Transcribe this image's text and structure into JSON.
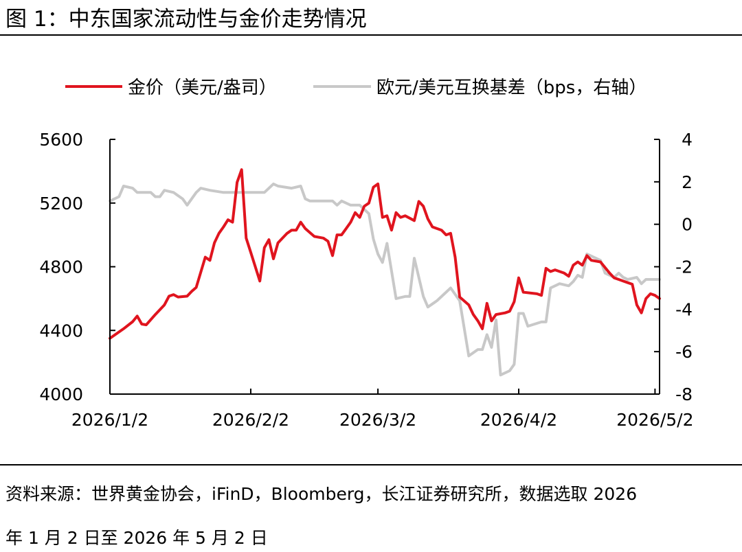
{
  "header": {
    "title": "图 1：中东国家流动性与金价走势情况"
  },
  "footer": {
    "source": "资料来源：世界黄金协会，iFinD，Bloomberg，长江证券研究所，数据选取 2026",
    "date_range": "年 1 月 2 日至 2026 年 5 月 2 日"
  },
  "chart_data": {
    "type": "line",
    "legend_position": "top",
    "grid": false,
    "x_ticks": [
      "2026/1/2",
      "2026/2/2",
      "2026/3/2",
      "2026/4/2",
      "2026/5/2"
    ],
    "x_range": [
      "2026/1/2",
      "2026/5/3"
    ],
    "y_left": {
      "range": [
        4000,
        5600
      ],
      "ticks": [
        "4000",
        "4400",
        "4800",
        "5200",
        "5600"
      ]
    },
    "y_right": {
      "range": [
        -8,
        4
      ],
      "ticks": [
        "-8",
        "-6",
        "-4",
        "-2",
        "0",
        "2",
        "4"
      ]
    },
    "series": [
      {
        "name": "金价（美元/盎司）",
        "axis": "left",
        "color": "#e0141e",
        "points": [
          [
            "2026/1/2",
            4350
          ],
          [
            "2026/1/5",
            4410
          ],
          [
            "2026/1/7",
            4455
          ],
          [
            "2026/1/8",
            4490
          ],
          [
            "2026/1/9",
            4440
          ],
          [
            "2026/1/10",
            4435
          ],
          [
            "2026/1/12",
            4500
          ],
          [
            "2026/1/14",
            4560
          ],
          [
            "2026/1/15",
            4615
          ],
          [
            "2026/1/16",
            4625
          ],
          [
            "2026/1/17",
            4610
          ],
          [
            "2026/1/19",
            4615
          ],
          [
            "2026/1/20",
            4645
          ],
          [
            "2026/1/21",
            4670
          ],
          [
            "2026/1/23",
            4860
          ],
          [
            "2026/1/24",
            4840
          ],
          [
            "2026/1/25",
            4950
          ],
          [
            "2026/1/26",
            5010
          ],
          [
            "2026/1/27",
            5050
          ],
          [
            "2026/1/28",
            5095
          ],
          [
            "2026/1/29",
            5080
          ],
          [
            "2026/1/30",
            5330
          ],
          [
            "2026/1/31",
            5410
          ],
          [
            "2026/2/1",
            4980
          ],
          [
            "2026/2/2",
            4890
          ],
          [
            "2026/2/4",
            4710
          ],
          [
            "2026/2/5",
            4920
          ],
          [
            "2026/2/6",
            4970
          ],
          [
            "2026/2/7",
            4850
          ],
          [
            "2026/2/8",
            4950
          ],
          [
            "2026/2/9",
            4980
          ],
          [
            "2026/2/10",
            5010
          ],
          [
            "2026/2/11",
            5030
          ],
          [
            "2026/2/12",
            5030
          ],
          [
            "2026/2/13",
            5080
          ],
          [
            "2026/2/14",
            5040
          ],
          [
            "2026/2/16",
            4990
          ],
          [
            "2026/2/18",
            4980
          ],
          [
            "2026/2/19",
            4960
          ],
          [
            "2026/2/20",
            4870
          ],
          [
            "2026/2/21",
            5000
          ],
          [
            "2026/2/22",
            5000
          ],
          [
            "2026/2/23",
            5040
          ],
          [
            "2026/2/24",
            5080
          ],
          [
            "2026/2/25",
            5140
          ],
          [
            "2026/2/26",
            5110
          ],
          [
            "2026/2/27",
            5180
          ],
          [
            "2026/2/28",
            5200
          ],
          [
            "2026/3/1",
            5300
          ],
          [
            "2026/3/2",
            5320
          ],
          [
            "2026/3/3",
            5110
          ],
          [
            "2026/3/4",
            5120
          ],
          [
            "2026/3/5",
            5030
          ],
          [
            "2026/3/6",
            5140
          ],
          [
            "2026/3/7",
            5110
          ],
          [
            "2026/3/8",
            5120
          ],
          [
            "2026/3/10",
            5090
          ],
          [
            "2026/3/11",
            5210
          ],
          [
            "2026/3/12",
            5180
          ],
          [
            "2026/3/13",
            5100
          ],
          [
            "2026/3/14",
            5050
          ],
          [
            "2026/3/16",
            5030
          ],
          [
            "2026/3/17",
            5000
          ],
          [
            "2026/3/18",
            5010
          ],
          [
            "2026/3/19",
            4860
          ],
          [
            "2026/3/20",
            4610
          ],
          [
            "2026/3/22",
            4560
          ],
          [
            "2026/3/23",
            4500
          ],
          [
            "2026/3/24",
            4460
          ],
          [
            "2026/3/25",
            4410
          ],
          [
            "2026/3/26",
            4570
          ],
          [
            "2026/3/27",
            4460
          ],
          [
            "2026/3/28",
            4500
          ],
          [
            "2026/3/30",
            4510
          ],
          [
            "2026/3/31",
            4520
          ],
          [
            "2026/4/1",
            4580
          ],
          [
            "2026/4/2",
            4730
          ],
          [
            "2026/4/3",
            4640
          ],
          [
            "2026/4/6",
            4630
          ],
          [
            "2026/4/7",
            4620
          ],
          [
            "2026/4/8",
            4790
          ],
          [
            "2026/4/9",
            4770
          ],
          [
            "2026/4/10",
            4780
          ],
          [
            "2026/4/12",
            4760
          ],
          [
            "2026/4/13",
            4740
          ],
          [
            "2026/4/14",
            4810
          ],
          [
            "2026/4/15",
            4830
          ],
          [
            "2026/4/16",
            4810
          ],
          [
            "2026/4/17",
            4870
          ],
          [
            "2026/4/18",
            4840
          ],
          [
            "2026/4/20",
            4830
          ],
          [
            "2026/4/22",
            4760
          ],
          [
            "2026/4/23",
            4730
          ],
          [
            "2026/4/24",
            4720
          ],
          [
            "2026/4/25",
            4710
          ],
          [
            "2026/4/26",
            4700
          ],
          [
            "2026/4/27",
            4690
          ],
          [
            "2026/4/28",
            4560
          ],
          [
            "2026/4/29",
            4510
          ],
          [
            "2026/4/30",
            4600
          ],
          [
            "2026/5/1",
            4630
          ],
          [
            "2026/5/2",
            4620
          ],
          [
            "2026/5/3",
            4600
          ]
        ]
      },
      {
        "name": "欧元/美元互换基差（bps，右轴）",
        "axis": "right",
        "color": "#c8c8c8",
        "points": [
          [
            "2026/1/2",
            1.1
          ],
          [
            "2026/1/4",
            1.3
          ],
          [
            "2026/1/5",
            1.8
          ],
          [
            "2026/1/7",
            1.7
          ],
          [
            "2026/1/8",
            1.5
          ],
          [
            "2026/1/11",
            1.5
          ],
          [
            "2026/1/12",
            1.3
          ],
          [
            "2026/1/13",
            1.3
          ],
          [
            "2026/1/14",
            1.6
          ],
          [
            "2026/1/16",
            1.5
          ],
          [
            "2026/1/18",
            1.2
          ],
          [
            "2026/1/19",
            0.9
          ],
          [
            "2026/1/21",
            1.5
          ],
          [
            "2026/1/22",
            1.7
          ],
          [
            "2026/1/24",
            1.6
          ],
          [
            "2026/1/27",
            1.5
          ],
          [
            "2026/2/1",
            1.5
          ],
          [
            "2026/2/3",
            1.5
          ],
          [
            "2026/2/5",
            1.5
          ],
          [
            "2026/2/7",
            1.9
          ],
          [
            "2026/2/8",
            1.8
          ],
          [
            "2026/2/11",
            1.7
          ],
          [
            "2026/2/13",
            1.8
          ],
          [
            "2026/2/14",
            1.2
          ],
          [
            "2026/2/15",
            1.1
          ],
          [
            "2026/2/20",
            1.1
          ],
          [
            "2026/2/21",
            0.9
          ],
          [
            "2026/2/22",
            1.1
          ],
          [
            "2026/2/24",
            0.9
          ],
          [
            "2026/2/26",
            0.9
          ],
          [
            "2026/2/28",
            0.5
          ],
          [
            "2026/3/1",
            -0.7
          ],
          [
            "2026/3/2",
            -1.4
          ],
          [
            "2026/3/3",
            -1.8
          ],
          [
            "2026/3/4",
            -0.9
          ],
          [
            "2026/3/6",
            -3.5
          ],
          [
            "2026/3/8",
            -3.4
          ],
          [
            "2026/3/9",
            -3.4
          ],
          [
            "2026/3/10",
            -1.6
          ],
          [
            "2026/3/12",
            -3.4
          ],
          [
            "2026/3/13",
            -3.9
          ],
          [
            "2026/3/15",
            -3.6
          ],
          [
            "2026/3/17",
            -3.2
          ],
          [
            "2026/3/18",
            -3.0
          ],
          [
            "2026/3/20",
            -3.6
          ],
          [
            "2026/3/22",
            -6.2
          ],
          [
            "2026/3/24",
            -5.9
          ],
          [
            "2026/3/25",
            -5.9
          ],
          [
            "2026/3/26",
            -5.2
          ],
          [
            "2026/3/27",
            -5.8
          ],
          [
            "2026/3/28",
            -4.5
          ],
          [
            "2026/3/29",
            -7.1
          ],
          [
            "2026/3/31",
            -6.9
          ],
          [
            "2026/4/1",
            -6.6
          ],
          [
            "2026/4/2",
            -4.2
          ],
          [
            "2026/4/3",
            -4.2
          ],
          [
            "2026/4/4",
            -4.8
          ],
          [
            "2026/4/7",
            -4.6
          ],
          [
            "2026/4/8",
            -4.6
          ],
          [
            "2026/4/9",
            -3.0
          ],
          [
            "2026/4/11",
            -2.8
          ],
          [
            "2026/4/13",
            -2.9
          ],
          [
            "2026/4/14",
            -2.7
          ],
          [
            "2026/4/15",
            -2.4
          ],
          [
            "2026/4/16",
            -2.5
          ],
          [
            "2026/4/17",
            -1.4
          ],
          [
            "2026/4/20",
            -1.7
          ],
          [
            "2026/4/21",
            -2.3
          ],
          [
            "2026/4/23",
            -2.5
          ],
          [
            "2026/4/24",
            -2.3
          ],
          [
            "2026/4/25",
            -2.5
          ],
          [
            "2026/4/26",
            -2.6
          ],
          [
            "2026/4/28",
            -2.5
          ],
          [
            "2026/4/29",
            -2.8
          ],
          [
            "2026/4/30",
            -2.6
          ],
          [
            "2026/5/3",
            -2.6
          ]
        ]
      }
    ]
  }
}
